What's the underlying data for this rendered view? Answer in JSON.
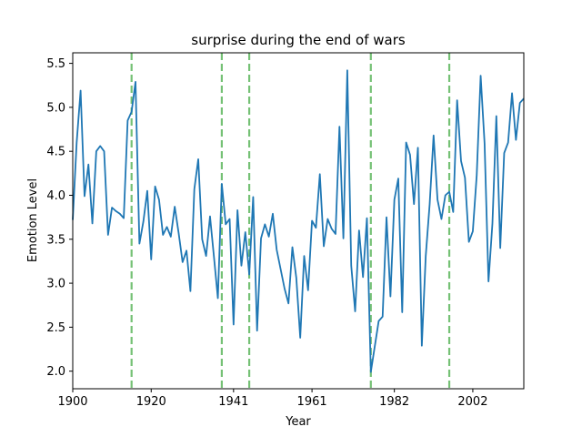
{
  "chart_data": {
    "type": "line",
    "title": "surprise during the end of wars",
    "xlabel": "Year",
    "ylabel": "Emotion Level",
    "xlim": [
      1900,
      2015
    ],
    "ylim": [
      1.8,
      5.62
    ],
    "xticks": [
      1900,
      1920,
      1941,
      1961,
      1982,
      2002
    ],
    "yticks": [
      2.0,
      2.5,
      3.0,
      3.5,
      4.0,
      4.5,
      5.0,
      5.5
    ],
    "ytick_labels": [
      "2.0",
      "2.5",
      "3.0",
      "3.5",
      "4.0",
      "4.5",
      "5.0",
      "5.5"
    ],
    "grid": false,
    "series": [
      {
        "color": "#1f77b4",
        "x": [
          1900,
          1901,
          1902,
          1903,
          1904,
          1905,
          1906,
          1907,
          1908,
          1909,
          1910,
          1911,
          1912,
          1913,
          1914,
          1915,
          1916,
          1917,
          1918,
          1919,
          1920,
          1921,
          1922,
          1923,
          1924,
          1925,
          1926,
          1927,
          1928,
          1929,
          1930,
          1931,
          1932,
          1933,
          1934,
          1935,
          1936,
          1937,
          1938,
          1939,
          1940,
          1941,
          1942,
          1943,
          1944,
          1945,
          1946,
          1947,
          1948,
          1949,
          1950,
          1951,
          1952,
          1953,
          1954,
          1955,
          1956,
          1957,
          1958,
          1959,
          1960,
          1961,
          1962,
          1963,
          1964,
          1965,
          1966,
          1967,
          1968,
          1969,
          1970,
          1971,
          1972,
          1973,
          1974,
          1975,
          1976,
          1977,
          1978,
          1979,
          1980,
          1981,
          1982,
          1983,
          1984,
          1985,
          1986,
          1987,
          1988,
          1989,
          1990,
          1991,
          1992,
          1993,
          1994,
          1995,
          1996,
          1997,
          1998,
          1999,
          2000,
          2001,
          2002,
          2003,
          2004,
          2005,
          2006,
          2007,
          2008,
          2009,
          2010,
          2011,
          2012,
          2013,
          2014,
          2015
        ],
        "y": [
          3.72,
          4.6,
          5.19,
          3.99,
          4.35,
          3.68,
          4.5,
          4.56,
          4.5,
          3.55,
          3.86,
          3.82,
          3.79,
          3.74,
          4.85,
          4.95,
          5.29,
          3.45,
          3.7,
          4.05,
          3.27,
          4.1,
          3.95,
          3.55,
          3.64,
          3.53,
          3.87,
          3.57,
          3.24,
          3.37,
          2.91,
          4.07,
          4.41,
          3.5,
          3.31,
          3.76,
          3.3,
          2.83,
          4.13,
          3.67,
          3.73,
          2.53,
          3.83,
          3.2,
          3.58,
          3.1,
          3.98,
          2.46,
          3.51,
          3.67,
          3.53,
          3.79,
          3.38,
          3.16,
          2.94,
          2.77,
          3.41,
          3.06,
          2.38,
          3.31,
          2.92,
          3.71,
          3.63,
          4.24,
          3.42,
          3.73,
          3.62,
          3.56,
          4.78,
          3.51,
          5.42,
          3.2,
          2.68,
          3.6,
          3.07,
          3.74,
          1.99,
          2.28,
          2.57,
          2.62,
          3.75,
          2.85,
          3.95,
          4.19,
          2.67,
          4.6,
          4.46,
          3.9,
          4.54,
          2.29,
          3.31,
          3.9,
          4.68,
          3.95,
          3.73,
          4.0,
          4.04,
          3.81,
          5.08,
          4.39,
          4.2,
          3.47,
          3.59,
          4.23,
          5.36,
          4.59,
          3.02,
          3.68,
          4.9,
          3.4,
          4.48,
          4.6,
          5.16,
          4.63,
          5.05,
          5.1
        ]
      }
    ],
    "vlines": [
      1915,
      1938,
      1945,
      1976,
      1996
    ],
    "vline_color": "#2ca02c"
  }
}
